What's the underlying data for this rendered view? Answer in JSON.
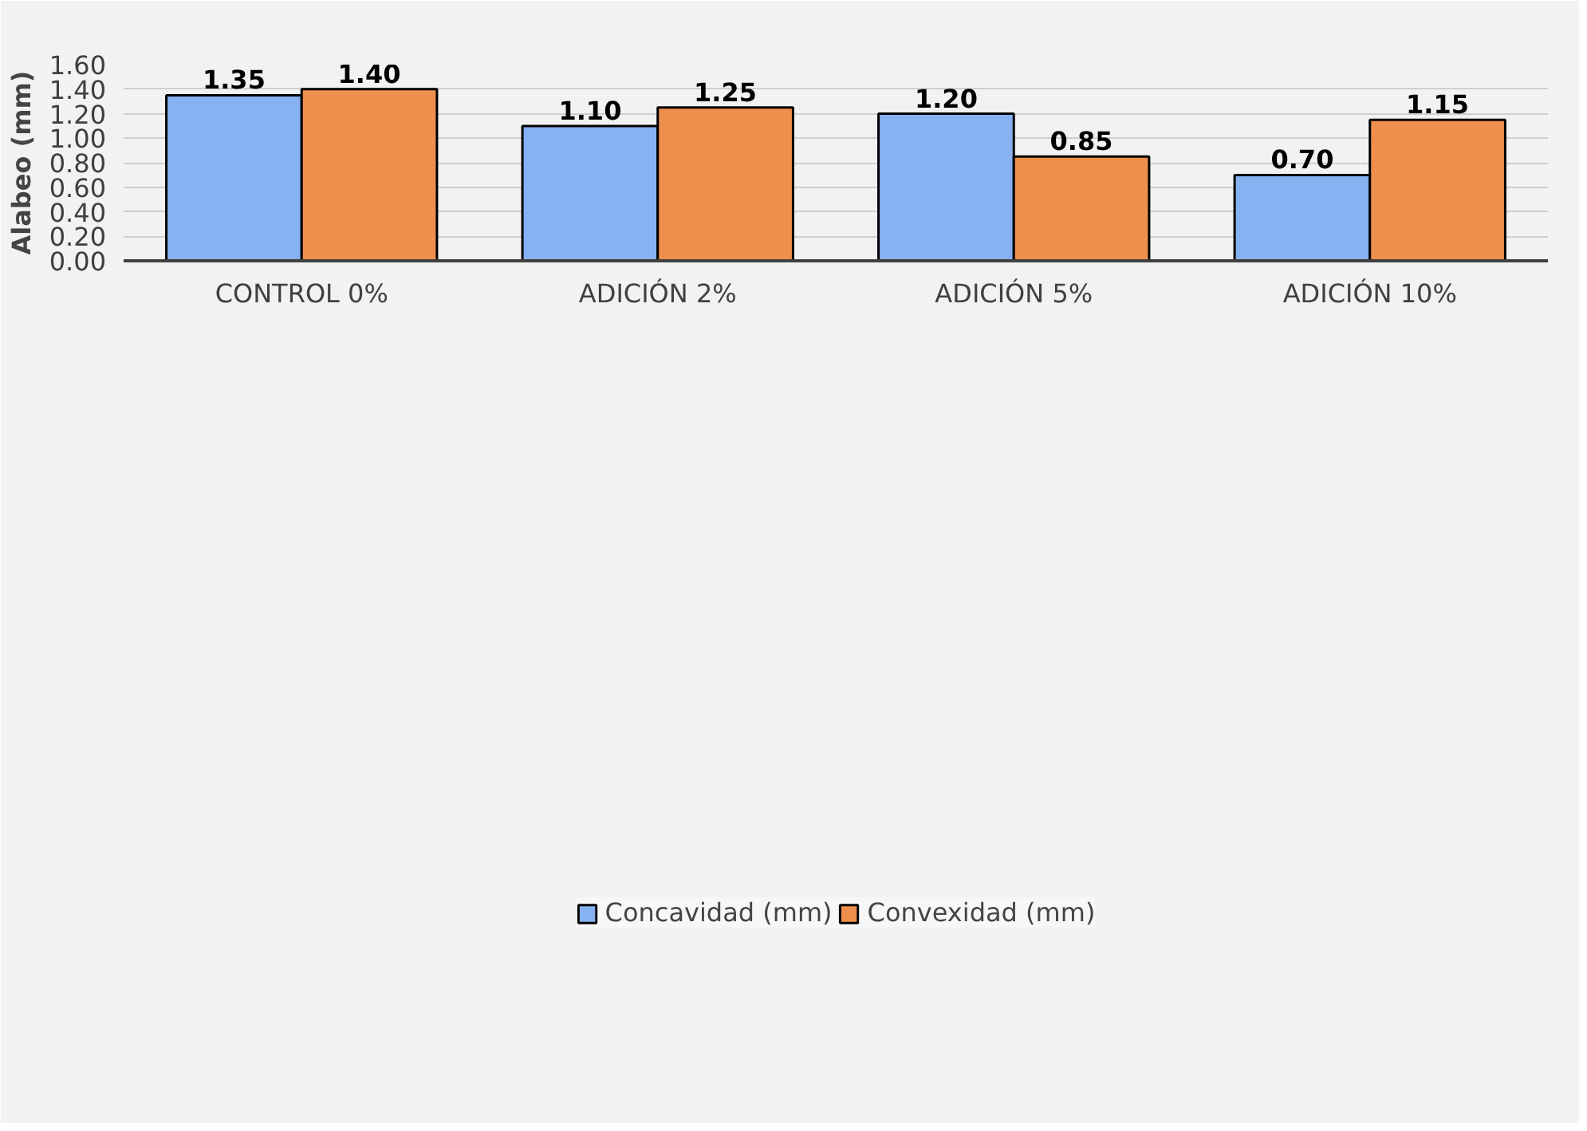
{
  "chart_data": {
    "type": "bar",
    "ylabel": "Alabeo (mm)",
    "categories": [
      "CONTROL 0%",
      "ADICIÓN 2%",
      "ADICIÓN 5%",
      "ADICIÓN 10%"
    ],
    "series": [
      {
        "name": "Concavidad (mm)",
        "color": "#86b2f2",
        "values": [
          1.35,
          1.1,
          1.2,
          0.7
        ],
        "value_labels": [
          "1.35",
          "1.10",
          "1.20",
          "0.70"
        ]
      },
      {
        "name": "Convexidad (mm)",
        "color": "#ef8f4d",
        "values": [
          1.4,
          1.25,
          0.85,
          1.15
        ],
        "value_labels": [
          "1.40",
          "1.25",
          "0.85",
          "1.15"
        ]
      }
    ],
    "ylim": [
      0,
      1.6
    ],
    "yticks": [
      {
        "value": 0,
        "label": "0.00"
      },
      {
        "value": 0.2,
        "label": "0.20"
      },
      {
        "value": 0.4,
        "label": "0.40"
      },
      {
        "value": 0.6,
        "label": "0.60"
      },
      {
        "value": 0.8,
        "label": "0.80"
      },
      {
        "value": 1.0,
        "label": "1.00"
      },
      {
        "value": 1.2,
        "label": "1.20"
      },
      {
        "value": 1.4,
        "label": "1.40"
      },
      {
        "value": 1.6,
        "label": "1.60"
      }
    ],
    "grid": "y",
    "legend": "bottom"
  }
}
